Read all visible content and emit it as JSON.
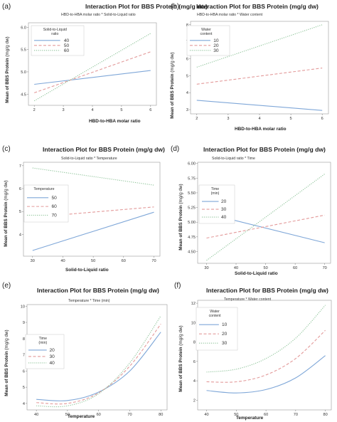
{
  "chart_data": [
    {
      "type": "line",
      "panel_label": "(a)",
      "title": "Interaction Plot for BBS Protein (mg/g dw)",
      "subtitle": "HBD-to-HBA molar ratio * Solid-to-Liquid ratio",
      "xlabel": "HBD-to-HBA molar ratio",
      "ylabel": "Mean of BBS Protein",
      "ylabel_unit": "(mg/g dw)",
      "xlim": [
        1.8,
        6.2
      ],
      "ylim": [
        4.25,
        6.1
      ],
      "xticks": [
        "2",
        "3",
        "4",
        "5",
        "6"
      ],
      "yticks": [
        "4.5",
        "5.0",
        "5.5",
        "6.0"
      ],
      "ytick_values": [
        4.5,
        5.0,
        5.5,
        6.0
      ],
      "legend_title": [
        "Solid-to-Liquid",
        "ratio"
      ],
      "legend_position": "top-left",
      "series": [
        {
          "name": "40",
          "color": "#7fa7d8",
          "style": "solid",
          "x": [
            2,
            6
          ],
          "y": [
            4.72,
            5.03
          ]
        },
        {
          "name": "50",
          "color": "#e39a9a",
          "style": "dashed",
          "x": [
            2,
            6
          ],
          "y": [
            4.53,
            5.45
          ]
        },
        {
          "name": "60",
          "color": "#8fc49a",
          "style": "dotted",
          "x": [
            2,
            6
          ],
          "y": [
            4.35,
            5.86
          ]
        }
      ]
    },
    {
      "type": "line",
      "panel_label": "(b)",
      "title": "Interaction Plot for BBS Protein (mg/g dw)",
      "subtitle": "HBD-to-HBA molar ratio * Water content",
      "xlabel": "HBD-to-HBA molar ratio",
      "ylabel": "Mean of BBS Protein",
      "ylabel_unit": "(mg/g dw)",
      "xlim": [
        1.8,
        6.2
      ],
      "ylim": [
        2.75,
        8.2
      ],
      "xticks": [
        "2",
        "3",
        "4",
        "5",
        "6"
      ],
      "yticks": [
        "3",
        "4",
        "5",
        "6",
        "7",
        "8"
      ],
      "ytick_values": [
        3,
        4,
        5,
        6,
        7,
        8
      ],
      "legend_title": [
        "Water",
        "content"
      ],
      "legend_position": "top-left",
      "series": [
        {
          "name": "10",
          "color": "#7fa7d8",
          "style": "solid",
          "x": [
            2,
            6
          ],
          "y": [
            3.55,
            2.95
          ]
        },
        {
          "name": "20",
          "color": "#e39a9a",
          "style": "dashed",
          "x": [
            2,
            6
          ],
          "y": [
            4.5,
            5.45
          ]
        },
        {
          "name": "30",
          "color": "#8fc49a",
          "style": "dotted",
          "x": [
            2,
            6
          ],
          "y": [
            5.5,
            8.0
          ]
        }
      ]
    },
    {
      "type": "line",
      "panel_label": "(c)",
      "title": "Interaction Plot for BBS Protein (mg/g dw)",
      "subtitle": "Solid-to-Liquid ratio * Temperature",
      "xlabel": "Solid-to-Liquid ratio",
      "ylabel": "Mean of BBS Protein",
      "ylabel_unit": "(mg/g dw)",
      "xlim": [
        27,
        72
      ],
      "ylim": [
        3.05,
        7.15
      ],
      "xticks": [
        "30",
        "40",
        "50",
        "60",
        "70"
      ],
      "xtick_values": [
        30,
        40,
        50,
        60,
        70
      ],
      "yticks": [
        "4",
        "5",
        "6",
        "7"
      ],
      "ytick_values": [
        4,
        5,
        6,
        7
      ],
      "legend_title": [
        "Temperature"
      ],
      "legend_position": "left",
      "series": [
        {
          "name": "50",
          "color": "#7fa7d8",
          "style": "solid",
          "x": [
            30,
            70
          ],
          "y": [
            3.3,
            4.97
          ]
        },
        {
          "name": "60",
          "color": "#e39a9a",
          "style": "dashed",
          "x": [
            30,
            70
          ],
          "y": [
            4.75,
            5.2
          ]
        },
        {
          "name": "70",
          "color": "#8fc49a",
          "style": "dotted",
          "x": [
            30,
            70
          ],
          "y": [
            6.9,
            6.15
          ]
        }
      ]
    },
    {
      "type": "line",
      "panel_label": "(d)",
      "title": "Interaction Plot for BBS Protein (mg/g dw)",
      "subtitle": "Solid-to-Liquid ratio * Time",
      "xlabel": "Solid-to-Liquid ratio",
      "ylabel": "Mean of BBS Protein",
      "ylabel_unit": "(mg/g dw)",
      "xlim": [
        27,
        72
      ],
      "ylim": [
        4.3,
        6.02
      ],
      "xticks": [
        "30",
        "40",
        "50",
        "60",
        "70"
      ],
      "xtick_values": [
        30,
        40,
        50,
        60,
        70
      ],
      "yticks": [
        "4.50",
        "4.75",
        "5.00",
        "5.25",
        "5.50",
        "5.75",
        "6.00"
      ],
      "ytick_values": [
        4.5,
        4.75,
        5.0,
        5.25,
        5.5,
        5.75,
        6.0
      ],
      "legend_title": [
        "Time",
        "(min)"
      ],
      "legend_position": "top-left",
      "series": [
        {
          "name": "20",
          "color": "#7fa7d8",
          "style": "solid",
          "x": [
            30,
            70
          ],
          "y": [
            5.15,
            4.65
          ]
        },
        {
          "name": "30",
          "color": "#e39a9a",
          "style": "dashed",
          "x": [
            30,
            70
          ],
          "y": [
            4.73,
            5.12
          ]
        },
        {
          "name": "40",
          "color": "#8fc49a",
          "style": "dotted",
          "x": [
            30,
            70
          ],
          "y": [
            4.35,
            5.82
          ]
        }
      ]
    },
    {
      "type": "line",
      "panel_label": "(e)",
      "title": "Interaction Plot for BBS Protein (mg/g dw)",
      "subtitle": "Temperature * Time (min)",
      "xlabel": "Temperature",
      "ylabel": "Mean of BBS Protein",
      "ylabel_unit": "(mg/g dw)",
      "xlim": [
        37,
        82
      ],
      "ylim": [
        3.6,
        10.1
      ],
      "xticks": [
        "40",
        "50",
        "60",
        "70",
        "80"
      ],
      "xtick_values": [
        40,
        50,
        60,
        70,
        80
      ],
      "yticks": [
        "4",
        "5",
        "6",
        "7",
        "8",
        "9",
        "10"
      ],
      "ytick_values": [
        4,
        5,
        6,
        7,
        8,
        9,
        10
      ],
      "legend_title": [
        "Time",
        "(min)"
      ],
      "legend_position": "left",
      "series": [
        {
          "name": "20",
          "color": "#7fa7d8",
          "style": "solid",
          "x": [
            40,
            50,
            60,
            70,
            80
          ],
          "y": [
            4.25,
            4.18,
            4.7,
            6.0,
            8.4
          ]
        },
        {
          "name": "30",
          "color": "#e39a9a",
          "style": "dashed",
          "x": [
            40,
            50,
            60,
            70,
            80
          ],
          "y": [
            4.05,
            4.0,
            4.65,
            6.3,
            8.9
          ]
        },
        {
          "name": "40",
          "color": "#8fc49a",
          "style": "dotted",
          "x": [
            40,
            50,
            60,
            70,
            80
          ],
          "y": [
            3.85,
            3.85,
            4.6,
            6.5,
            9.4
          ]
        }
      ]
    },
    {
      "type": "line",
      "panel_label": "(f)",
      "title": "Interaction Plot for BBS Protein (mg/g dw)",
      "subtitle": "Temperature * Water content",
      "xlabel": "Temperature",
      "ylabel": "Mean of BBS Protein",
      "ylabel_unit": "(mg/g dw)",
      "xlim": [
        37,
        82
      ],
      "ylim": [
        1.0,
        12.3
      ],
      "xticks": [
        "40",
        "50",
        "60",
        "70",
        "80"
      ],
      "xtick_values": [
        40,
        50,
        60,
        70,
        80
      ],
      "yticks": [
        "2",
        "4",
        "6",
        "8",
        "10",
        "12"
      ],
      "ytick_values": [
        2,
        4,
        6,
        8,
        10,
        12
      ],
      "legend_title": [
        "Water",
        "content"
      ],
      "legend_position": "top-left",
      "series": [
        {
          "name": "10",
          "color": "#7fa7d8",
          "style": "solid",
          "x": [
            40,
            50,
            60,
            70,
            80
          ],
          "y": [
            3.0,
            2.75,
            3.1,
            4.3,
            6.6
          ]
        },
        {
          "name": "20",
          "color": "#e39a9a",
          "style": "dashed",
          "x": [
            40,
            50,
            60,
            70,
            80
          ],
          "y": [
            3.9,
            3.9,
            4.6,
            6.3,
            9.2
          ]
        },
        {
          "name": "30",
          "color": "#8fc49a",
          "style": "dotted",
          "x": [
            40,
            50,
            60,
            70,
            80
          ],
          "y": [
            4.9,
            5.2,
            6.3,
            8.4,
            11.8
          ]
        }
      ]
    }
  ]
}
